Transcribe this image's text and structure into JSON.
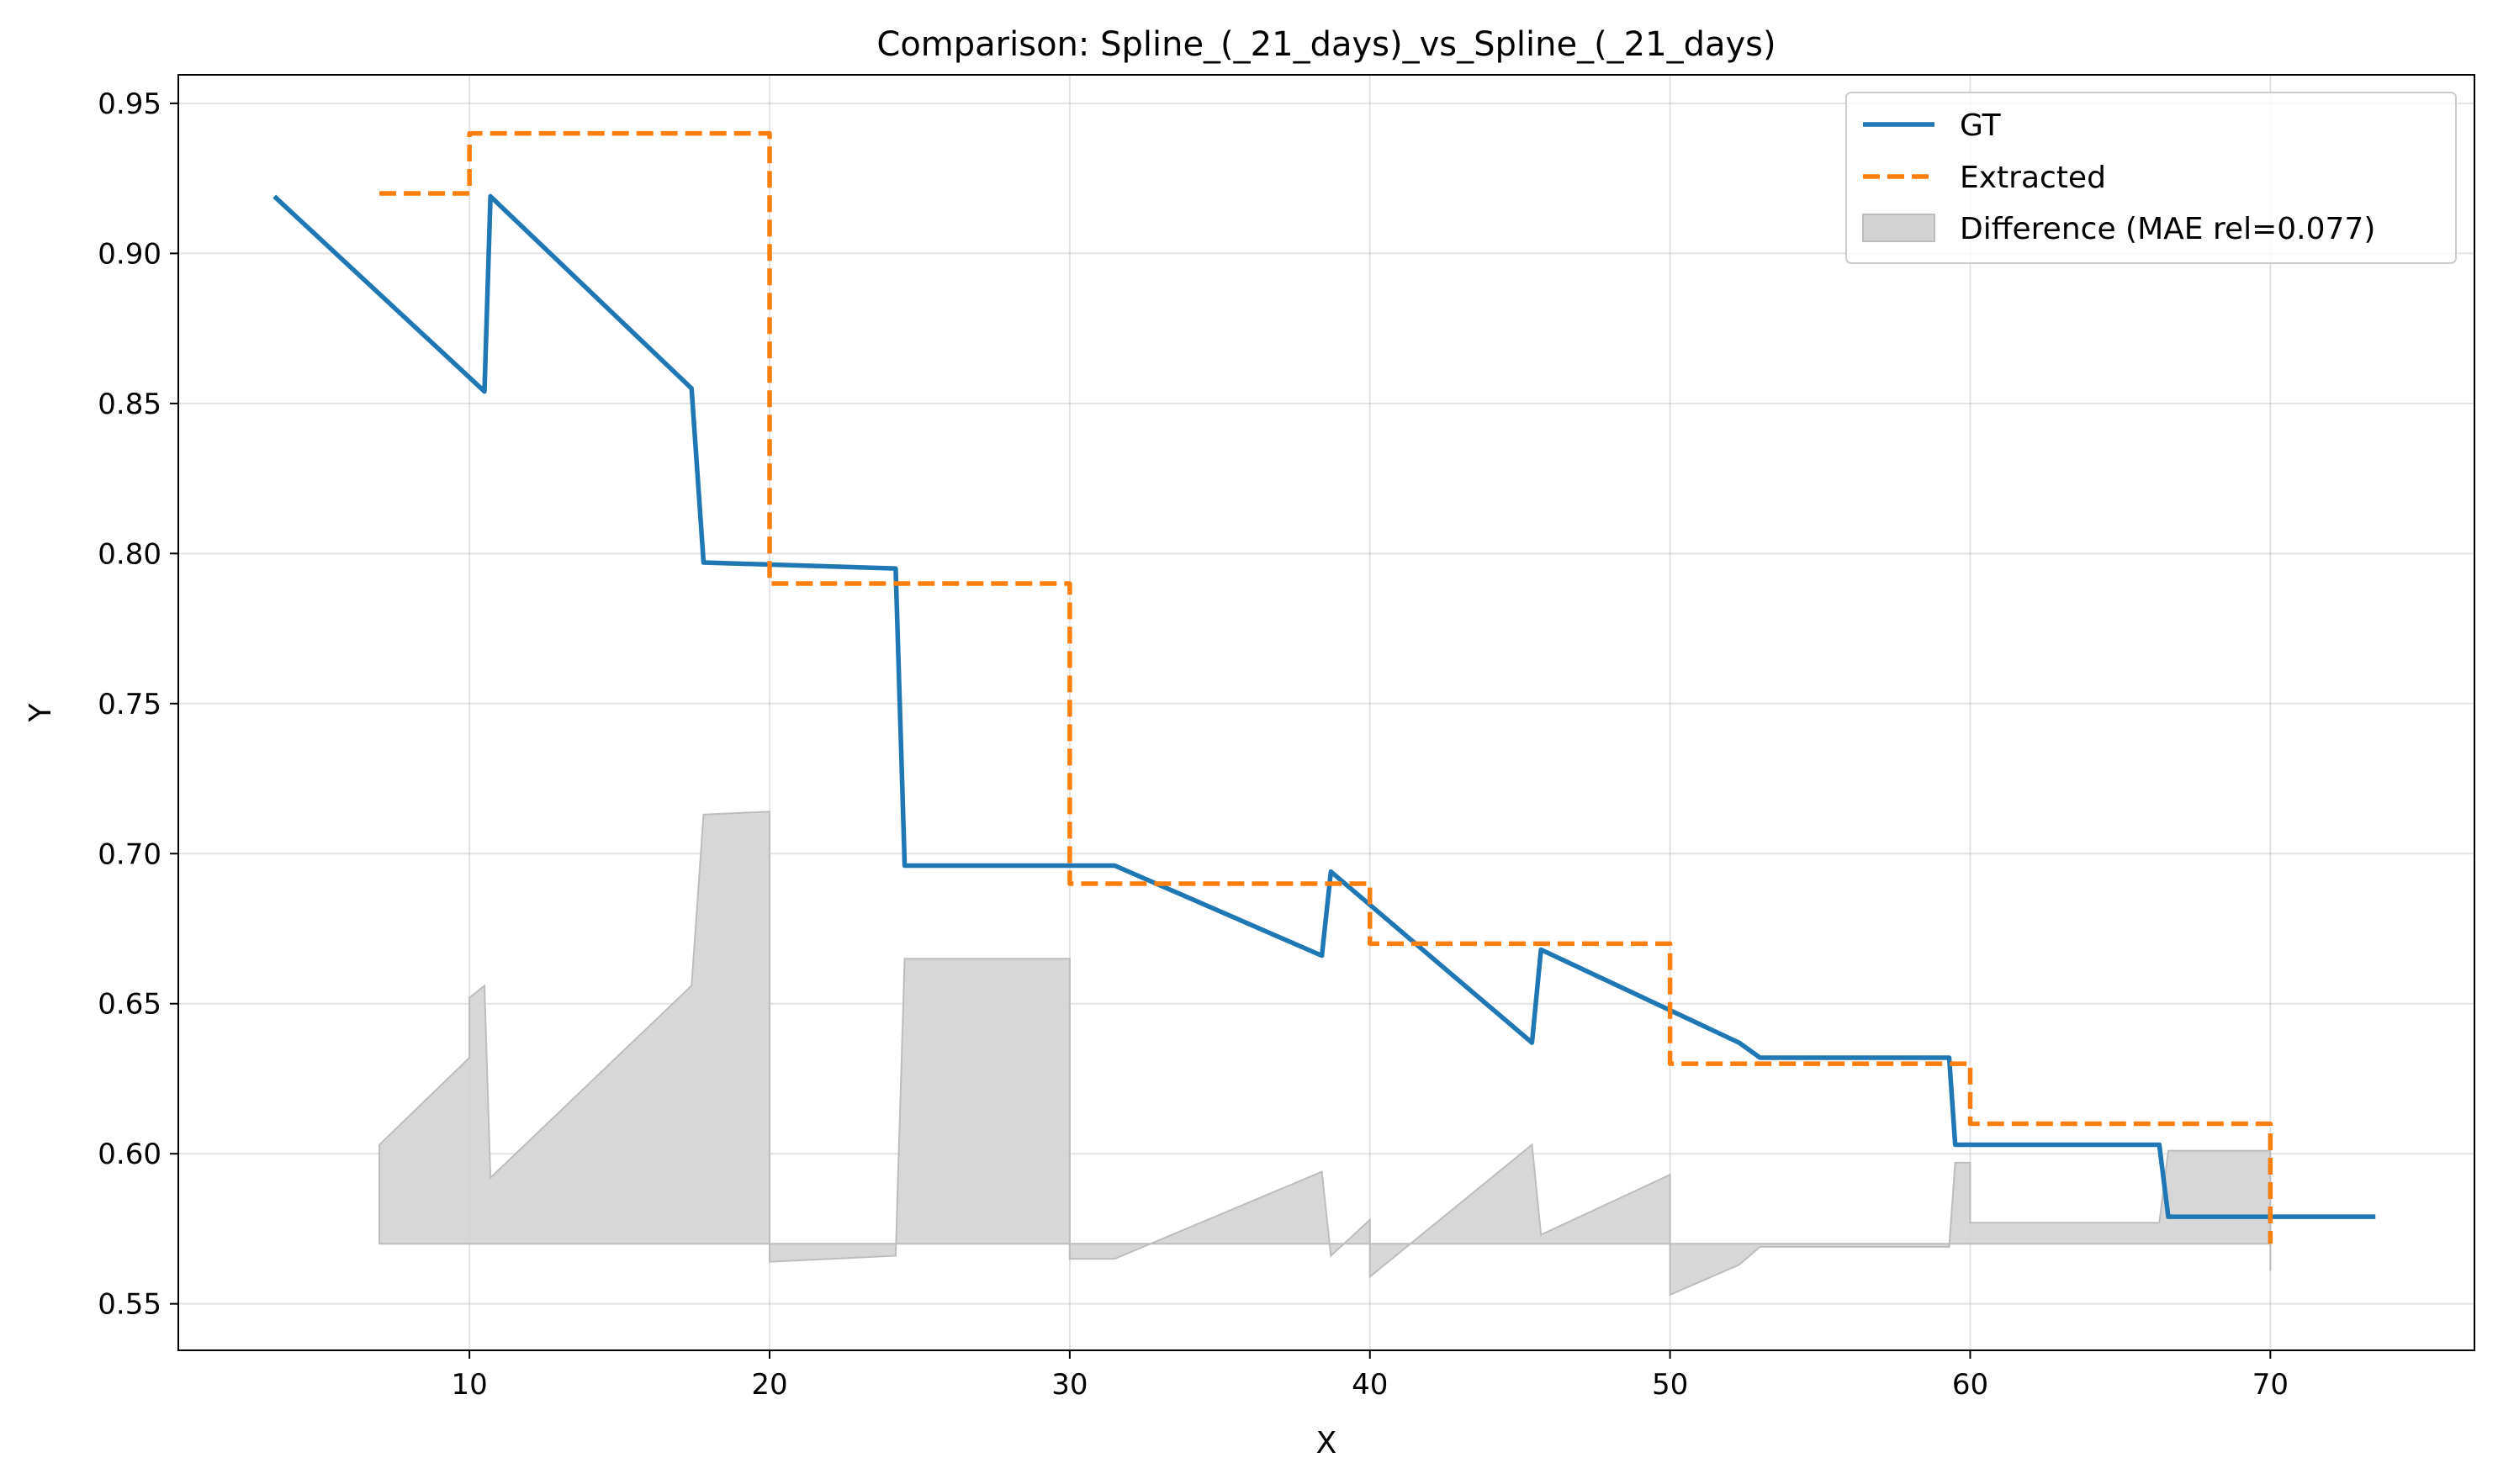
{
  "chart_data": {
    "type": "line",
    "title": "Comparison: Spline_(_21_days)_vs_Spline_(_21_days)",
    "xlabel": "X",
    "ylabel": "Y",
    "xlim": [
      0.3,
      76.8
    ],
    "ylim": [
      0.5345,
      0.9595
    ],
    "xticks": [
      10,
      20,
      30,
      40,
      50,
      60,
      70
    ],
    "yticks": [
      0.55,
      0.6,
      0.65,
      0.7,
      0.75,
      0.8,
      0.85,
      0.9,
      0.95
    ],
    "xtick_labels": [
      "10",
      "20",
      "30",
      "40",
      "50",
      "60",
      "70"
    ],
    "ytick_labels": [
      "0.55",
      "0.60",
      "0.65",
      "0.70",
      "0.75",
      "0.80",
      "0.85",
      "0.90",
      "0.95"
    ],
    "grid": true,
    "legend_position": "top-right",
    "series": [
      {
        "name": "GT",
        "style": "solid",
        "color": "#1f77b4",
        "points": [
          [
            3.5,
            0.919
          ],
          [
            10.5,
            0.854
          ],
          [
            10.7,
            0.919
          ],
          [
            17.4,
            0.855
          ],
          [
            17.8,
            0.797
          ],
          [
            24.2,
            0.795
          ],
          [
            24.5,
            0.696
          ],
          [
            31.5,
            0.696
          ],
          [
            38.4,
            0.666
          ],
          [
            38.7,
            0.694
          ],
          [
            45.4,
            0.637
          ],
          [
            45.7,
            0.668
          ],
          [
            52.3,
            0.637
          ],
          [
            53.0,
            0.632
          ],
          [
            59.3,
            0.632
          ],
          [
            59.5,
            0.603
          ],
          [
            66.3,
            0.603
          ],
          [
            66.6,
            0.579
          ],
          [
            73.5,
            0.579
          ]
        ]
      },
      {
        "name": "Extracted",
        "style": "dashed",
        "color": "#ff7f0e",
        "points": [
          [
            7.0,
            0.92
          ],
          [
            10.0,
            0.92
          ],
          [
            10.0,
            0.94
          ],
          [
            20.0,
            0.94
          ],
          [
            20.0,
            0.79
          ],
          [
            30.0,
            0.79
          ],
          [
            30.0,
            0.69
          ],
          [
            40.0,
            0.69
          ],
          [
            40.0,
            0.67
          ],
          [
            50.0,
            0.67
          ],
          [
            50.0,
            0.63
          ],
          [
            60.0,
            0.63
          ],
          [
            60.0,
            0.61
          ],
          [
            70.0,
            0.61
          ],
          [
            70.0,
            0.57
          ]
        ]
      }
    ],
    "difference": {
      "name": "Difference (MAE rel=0.077)",
      "color": "#d3d3d3",
      "baseline": 0.57,
      "points": [
        [
          7.0,
          0.603
        ],
        [
          10.0,
          0.632
        ],
        [
          10.0,
          0.652
        ],
        [
          10.5,
          0.656
        ],
        [
          10.7,
          0.592
        ],
        [
          17.4,
          0.656
        ],
        [
          17.8,
          0.713
        ],
        [
          20.0,
          0.714
        ],
        [
          20.0,
          0.564
        ],
        [
          24.2,
          0.566
        ],
        [
          24.5,
          0.665
        ],
        [
          30.0,
          0.665
        ],
        [
          30.0,
          0.565
        ],
        [
          31.5,
          0.565
        ],
        [
          38.4,
          0.594
        ],
        [
          38.7,
          0.566
        ],
        [
          40.0,
          0.578
        ],
        [
          40.0,
          0.559
        ],
        [
          45.4,
          0.603
        ],
        [
          45.7,
          0.573
        ],
        [
          50.0,
          0.593
        ],
        [
          50.0,
          0.553
        ],
        [
          52.3,
          0.563
        ],
        [
          53.0,
          0.569
        ],
        [
          59.3,
          0.569
        ],
        [
          59.5,
          0.597
        ],
        [
          60.0,
          0.597
        ],
        [
          60.0,
          0.577
        ],
        [
          66.3,
          0.577
        ],
        [
          66.6,
          0.601
        ],
        [
          70.0,
          0.601
        ],
        [
          70.0,
          0.561
        ]
      ]
    }
  }
}
